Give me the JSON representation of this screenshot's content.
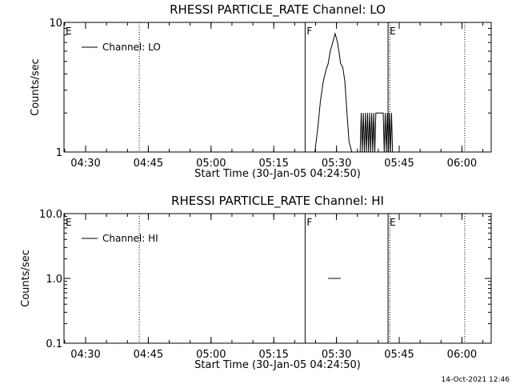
{
  "footer": "14-Oct-2021 12:46",
  "chart_data": [
    {
      "type": "line",
      "title": "RHESSI PARTICLE_RATE Channel: LO",
      "xlabel": "Start Time (30-Jan-05 04:24:50)",
      "ylabel": "Counts/sec",
      "yscale": "log",
      "ylim": [
        1,
        10
      ],
      "yticks": [
        1,
        10
      ],
      "ytick_labels": [
        "1",
        "10"
      ],
      "xlim": [
        "04:24:50",
        "06:07:00"
      ],
      "xticks": [
        "04:30",
        "04:45",
        "05:00",
        "05:15",
        "05:30",
        "05:45",
        "06:00"
      ],
      "grid": false,
      "legend": "top-left",
      "series": [
        {
          "name": "Channel: LO",
          "x": [
            "05:24:50",
            "05:25:30",
            "05:26:10",
            "05:26:50",
            "05:27:30",
            "05:28:00",
            "05:28:30",
            "05:29:00",
            "05:29:20",
            "05:29:40",
            "05:30:00",
            "05:30:15",
            "05:30:30",
            "05:30:45",
            "05:31:00",
            "05:31:30",
            "05:32:00",
            "05:32:30",
            "05:33:00",
            "05:33:40",
            "05:35:40",
            "05:35:55",
            "05:36:10",
            "05:36:25",
            "05:36:40",
            "05:36:55",
            "05:37:10",
            "05:37:25",
            "05:37:40",
            "05:37:55",
            "05:38:10",
            "05:38:25",
            "05:38:40",
            "05:38:55",
            "05:39:10",
            "05:39:25",
            "05:39:40",
            "05:39:55",
            "05:40:10",
            "05:40:25",
            "05:40:40",
            "05:40:55",
            "05:41:10",
            "05:41:25",
            "05:41:40",
            "05:41:55",
            "05:42:10",
            "05:42:25",
            "05:42:40",
            "05:42:55",
            "05:43:10",
            "05:43:25",
            "05:43:40",
            "05:43:55",
            "05:44:10",
            "05:44:25",
            "05:44:40"
          ],
          "y": [
            1,
            1.5,
            2.5,
            3.5,
            4.3,
            4.8,
            6.0,
            6.8,
            7.5,
            8.2,
            7.5,
            7.0,
            6.2,
            5.5,
            4.8,
            4.5,
            3.5,
            2.0,
            1.2,
            1,
            1,
            2,
            1,
            2,
            1,
            2,
            1,
            2,
            1,
            2,
            1,
            2,
            1,
            2,
            1,
            2,
            2,
            2,
            2,
            2,
            2,
            2,
            2,
            1,
            2,
            1,
            2,
            1,
            2,
            1,
            2,
            1,
            1,
            1,
            1,
            1,
            1
          ]
        }
      ],
      "annotations": [
        {
          "text": "E",
          "x": "04:24:50",
          "style": "vertical-solid"
        },
        {
          "x": "04:42:50",
          "style": "vertical-dotted"
        },
        {
          "text": "F",
          "x": "05:22:30",
          "style": "vertical-solid"
        },
        {
          "text": "E",
          "x": "05:42:20",
          "style": "vertical-solid"
        },
        {
          "x": "05:42:45",
          "style": "vertical-dotted"
        },
        {
          "x": "06:00:40",
          "style": "vertical-dotted"
        }
      ]
    },
    {
      "type": "line",
      "title": "RHESSI PARTICLE_RATE Channel: HI",
      "xlabel": "Start Time (30-Jan-05 04:24:50)",
      "ylabel": "Counts/sec",
      "yscale": "log",
      "ylim": [
        0.1,
        10
      ],
      "yticks": [
        0.1,
        1,
        10
      ],
      "ytick_labels": [
        "0.1",
        "1.0",
        "10.0"
      ],
      "xlim": [
        "04:24:50",
        "06:07:00"
      ],
      "xticks": [
        "04:30",
        "04:45",
        "05:00",
        "05:15",
        "05:30",
        "05:45",
        "06:00"
      ],
      "grid": false,
      "legend": "top-left",
      "series": [
        {
          "name": "Channel: HI",
          "x": [
            "05:28:00",
            "05:31:00"
          ],
          "y": [
            1,
            1
          ]
        }
      ],
      "annotations": [
        {
          "text": "E",
          "x": "04:24:50",
          "style": "vertical-solid"
        },
        {
          "x": "04:42:50",
          "style": "vertical-dotted"
        },
        {
          "text": "F",
          "x": "05:22:30",
          "style": "vertical-solid"
        },
        {
          "text": "E",
          "x": "05:42:20",
          "style": "vertical-solid"
        },
        {
          "x": "05:42:45",
          "style": "vertical-dotted"
        },
        {
          "x": "06:00:40",
          "style": "vertical-dotted"
        }
      ]
    }
  ]
}
